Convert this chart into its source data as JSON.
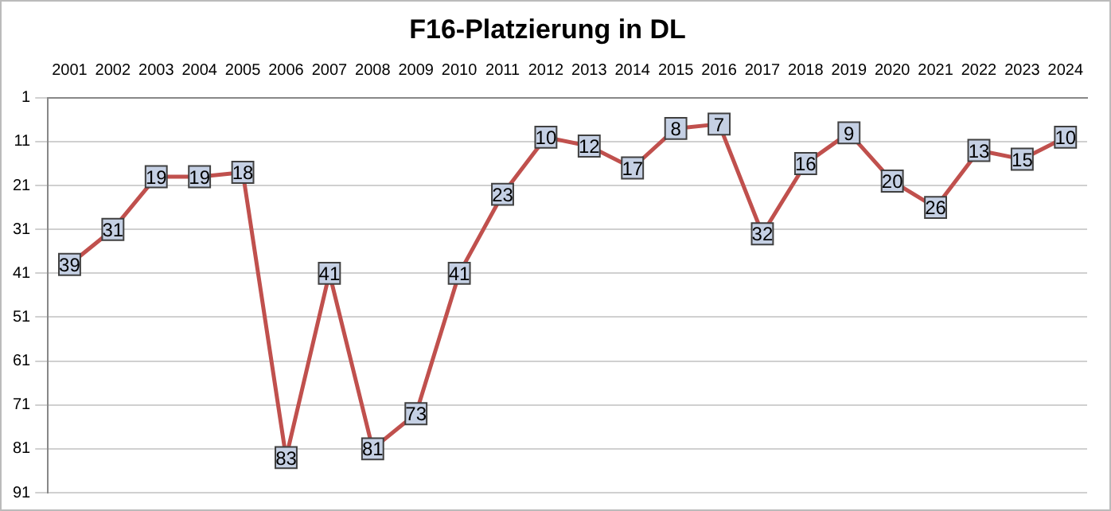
{
  "chart_data": {
    "type": "line",
    "title": "F16-Platzierung in DL",
    "categories": [
      "2001",
      "2002",
      "2003",
      "2004",
      "2005",
      "2006",
      "2007",
      "2008",
      "2009",
      "2010",
      "2011",
      "2012",
      "2013",
      "2014",
      "2015",
      "2016",
      "2017",
      "2018",
      "2019",
      "2020",
      "2021",
      "2022",
      "2023",
      "2024"
    ],
    "series": [
      {
        "color": "#c0504d",
        "values": [
          39,
          31,
          19,
          19,
          18,
          83,
          41,
          81,
          73,
          41,
          23,
          10,
          12,
          17,
          8,
          7,
          32,
          16,
          9,
          20,
          26,
          13,
          15,
          10
        ]
      }
    ],
    "ylim": [
      91,
      1
    ],
    "yticks": [
      1,
      11,
      21,
      31,
      41,
      51,
      61,
      71,
      81,
      91
    ],
    "grid": "y",
    "legend": false,
    "marker": "square",
    "line_style": "solid",
    "data_labels": true
  }
}
